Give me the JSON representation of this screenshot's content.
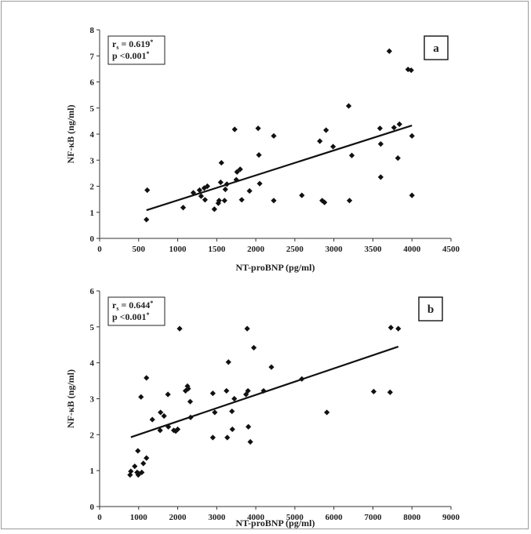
{
  "chart_data": [
    {
      "type": "scatter",
      "panel_label": "a",
      "stats": {
        "rs": "r",
        "rs_sub": "s",
        "rs_value": " = 0.619",
        "rs_mark": "*",
        "p": "p <0.001",
        "p_mark": "*"
      },
      "xlabel": "NT-proBNP (pg/ml)",
      "ylabel": "NF-κB (ng/ml)",
      "xlim": [
        0,
        4500
      ],
      "ylim": [
        0,
        8
      ],
      "xticks": [
        0,
        500,
        1000,
        1500,
        2000,
        2500,
        3000,
        3500,
        4000,
        4500
      ],
      "yticks": [
        0,
        1,
        2,
        3,
        4,
        5,
        6,
        7,
        8
      ],
      "trendline": [
        [
          600,
          1.08
        ],
        [
          4000,
          4.33
        ]
      ],
      "points": [
        [
          600,
          0.72
        ],
        [
          610,
          1.85
        ],
        [
          1070,
          1.18
        ],
        [
          1200,
          1.75
        ],
        [
          1280,
          1.85
        ],
        [
          1300,
          1.62
        ],
        [
          1340,
          1.93
        ],
        [
          1350,
          1.48
        ],
        [
          1380,
          2.0
        ],
        [
          1470,
          1.12
        ],
        [
          1520,
          1.35
        ],
        [
          1530,
          1.45
        ],
        [
          1550,
          2.15
        ],
        [
          1560,
          2.9
        ],
        [
          1600,
          1.45
        ],
        [
          1610,
          1.88
        ],
        [
          1630,
          2.08
        ],
        [
          1730,
          4.18
        ],
        [
          1750,
          2.25
        ],
        [
          1760,
          2.55
        ],
        [
          1800,
          2.65
        ],
        [
          1820,
          1.48
        ],
        [
          1920,
          1.82
        ],
        [
          2030,
          4.22
        ],
        [
          2040,
          3.2
        ],
        [
          2050,
          2.1
        ],
        [
          2230,
          3.93
        ],
        [
          2230,
          1.45
        ],
        [
          2590,
          1.65
        ],
        [
          2820,
          3.73
        ],
        [
          2850,
          1.45
        ],
        [
          2880,
          1.38
        ],
        [
          2900,
          4.15
        ],
        [
          2990,
          3.52
        ],
        [
          3190,
          5.08
        ],
        [
          3200,
          1.45
        ],
        [
          3230,
          3.18
        ],
        [
          3590,
          4.22
        ],
        [
          3600,
          3.62
        ],
        [
          3600,
          2.35
        ],
        [
          3710,
          7.18
        ],
        [
          3770,
          4.25
        ],
        [
          3820,
          3.08
        ],
        [
          3840,
          4.38
        ],
        [
          3950,
          6.48
        ],
        [
          3990,
          6.45
        ],
        [
          4000,
          3.93
        ],
        [
          4000,
          1.65
        ]
      ]
    },
    {
      "type": "scatter",
      "panel_label": "b",
      "stats": {
        "rs": "r",
        "rs_sub": "s",
        "rs_value": " = 0.644",
        "rs_mark": "*",
        "p": "p <0.001",
        "p_mark": "*"
      },
      "xlabel": "NT-proBNP (pg/ml)",
      "ylabel": "NF-κB (ng/ml)",
      "xlim": [
        0,
        9000
      ],
      "ylim": [
        0,
        6
      ],
      "xticks": [
        0,
        1000,
        2000,
        3000,
        4000,
        5000,
        6000,
        7000,
        8000,
        9000
      ],
      "yticks": [
        0,
        1,
        2,
        3,
        4,
        5,
        6
      ],
      "trendline": [
        [
          800,
          1.93
        ],
        [
          7650,
          4.45
        ]
      ],
      "points": [
        [
          780,
          0.88
        ],
        [
          800,
          0.98
        ],
        [
          900,
          1.12
        ],
        [
          960,
          0.95
        ],
        [
          980,
          1.55
        ],
        [
          990,
          0.88
        ],
        [
          1000,
          0.92
        ],
        [
          1060,
          3.05
        ],
        [
          1080,
          0.95
        ],
        [
          1120,
          1.2
        ],
        [
          1200,
          1.35
        ],
        [
          1200,
          3.58
        ],
        [
          1350,
          2.42
        ],
        [
          1550,
          2.12
        ],
        [
          1560,
          2.62
        ],
        [
          1650,
          2.52
        ],
        [
          1750,
          3.12
        ],
        [
          1760,
          2.22
        ],
        [
          1900,
          2.12
        ],
        [
          1950,
          2.1
        ],
        [
          2000,
          2.15
        ],
        [
          2050,
          4.95
        ],
        [
          2200,
          3.22
        ],
        [
          2250,
          3.35
        ],
        [
          2270,
          3.28
        ],
        [
          2320,
          2.92
        ],
        [
          2330,
          2.48
        ],
        [
          2900,
          3.15
        ],
        [
          2900,
          1.92
        ],
        [
          2950,
          2.62
        ],
        [
          3250,
          3.22
        ],
        [
          3270,
          1.92
        ],
        [
          3300,
          4.02
        ],
        [
          3390,
          2.65
        ],
        [
          3400,
          2.15
        ],
        [
          3450,
          3.0
        ],
        [
          3750,
          3.12
        ],
        [
          3780,
          4.95
        ],
        [
          3800,
          3.22
        ],
        [
          3810,
          2.22
        ],
        [
          3860,
          1.8
        ],
        [
          3950,
          4.42
        ],
        [
          4200,
          3.22
        ],
        [
          4400,
          3.88
        ],
        [
          5180,
          3.55
        ],
        [
          5820,
          2.62
        ],
        [
          7020,
          3.2
        ],
        [
          7440,
          3.18
        ],
        [
          7460,
          4.98
        ],
        [
          7650,
          4.95
        ]
      ]
    }
  ]
}
